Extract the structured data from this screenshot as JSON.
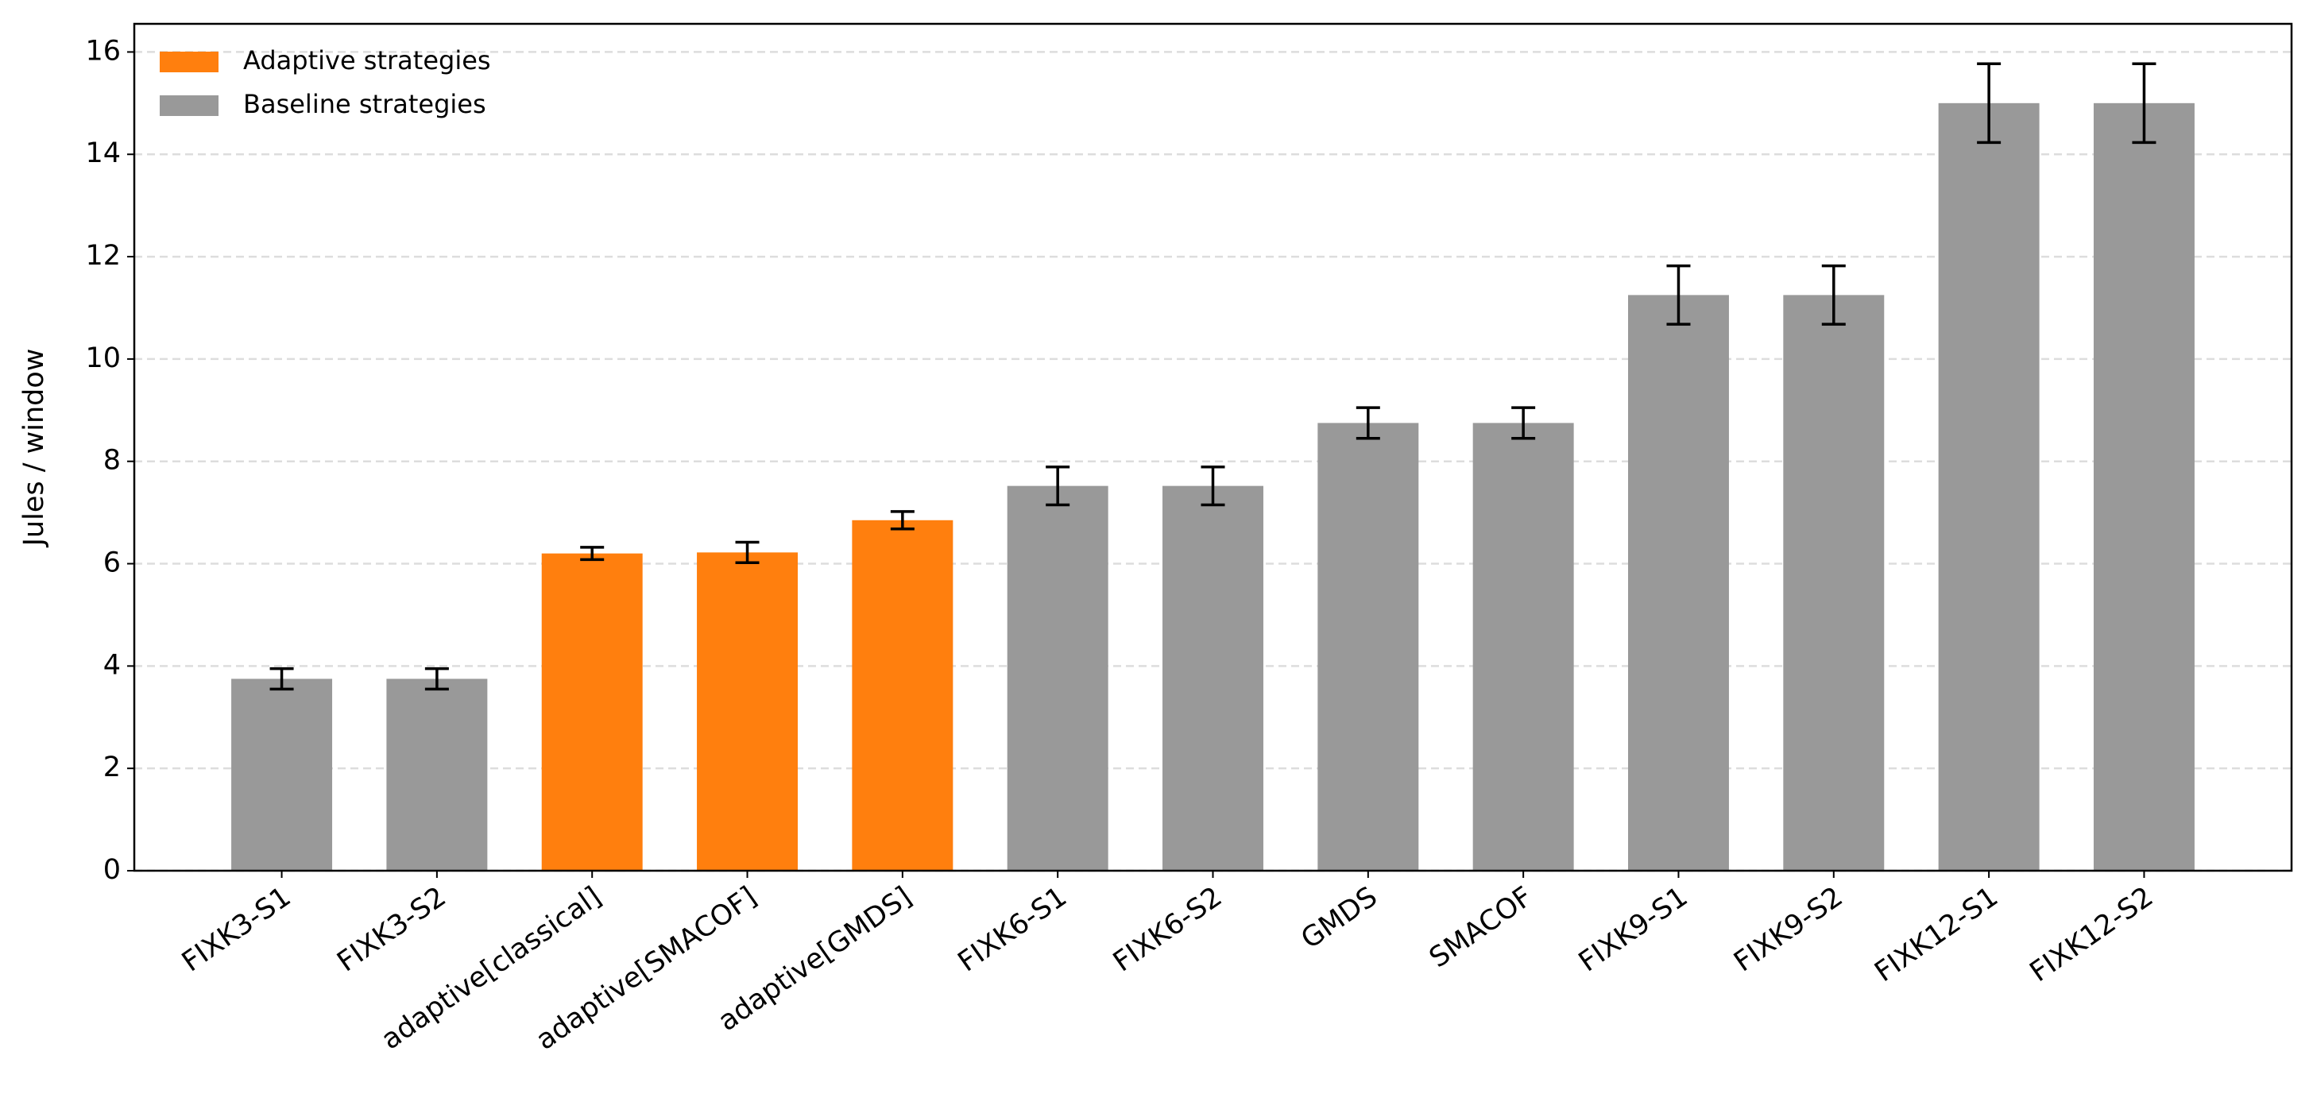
{
  "chart_data": {
    "type": "bar",
    "ylabel": "Jules / window",
    "categories": [
      "FIXK3-S1",
      "FIXK3-S2",
      "adaptive[classical]",
      "adaptive[SMACOF]",
      "adaptive[GMDS]",
      "FIXK6-S1",
      "FIXK6-S2",
      "GMDS",
      "SMACOF",
      "FIXK9-S1",
      "FIXK9-S2",
      "FIXK12-S1",
      "FIXK12-S2"
    ],
    "values": [
      3.75,
      3.75,
      6.2,
      6.22,
      6.85,
      7.52,
      7.52,
      8.75,
      8.75,
      11.25,
      11.25,
      15.0,
      15.0
    ],
    "errors": [
      0.2,
      0.2,
      0.12,
      0.2,
      0.17,
      0.37,
      0.37,
      0.3,
      0.3,
      0.57,
      0.57,
      0.77,
      0.77
    ],
    "colors": [
      "#999999",
      "#999999",
      "#ff7f0e",
      "#ff7f0e",
      "#ff7f0e",
      "#999999",
      "#999999",
      "#999999",
      "#999999",
      "#999999",
      "#999999",
      "#999999",
      "#999999"
    ],
    "legend": [
      {
        "name": "Adaptive strategies",
        "color": "#ff7f0e"
      },
      {
        "name": "Baseline strategies",
        "color": "#999999"
      }
    ],
    "legend_position": "upper left",
    "ylim": [
      0,
      16.55
    ],
    "yticks": [
      0,
      2,
      4,
      6,
      8,
      10,
      12,
      14,
      16
    ],
    "grid": true
  }
}
